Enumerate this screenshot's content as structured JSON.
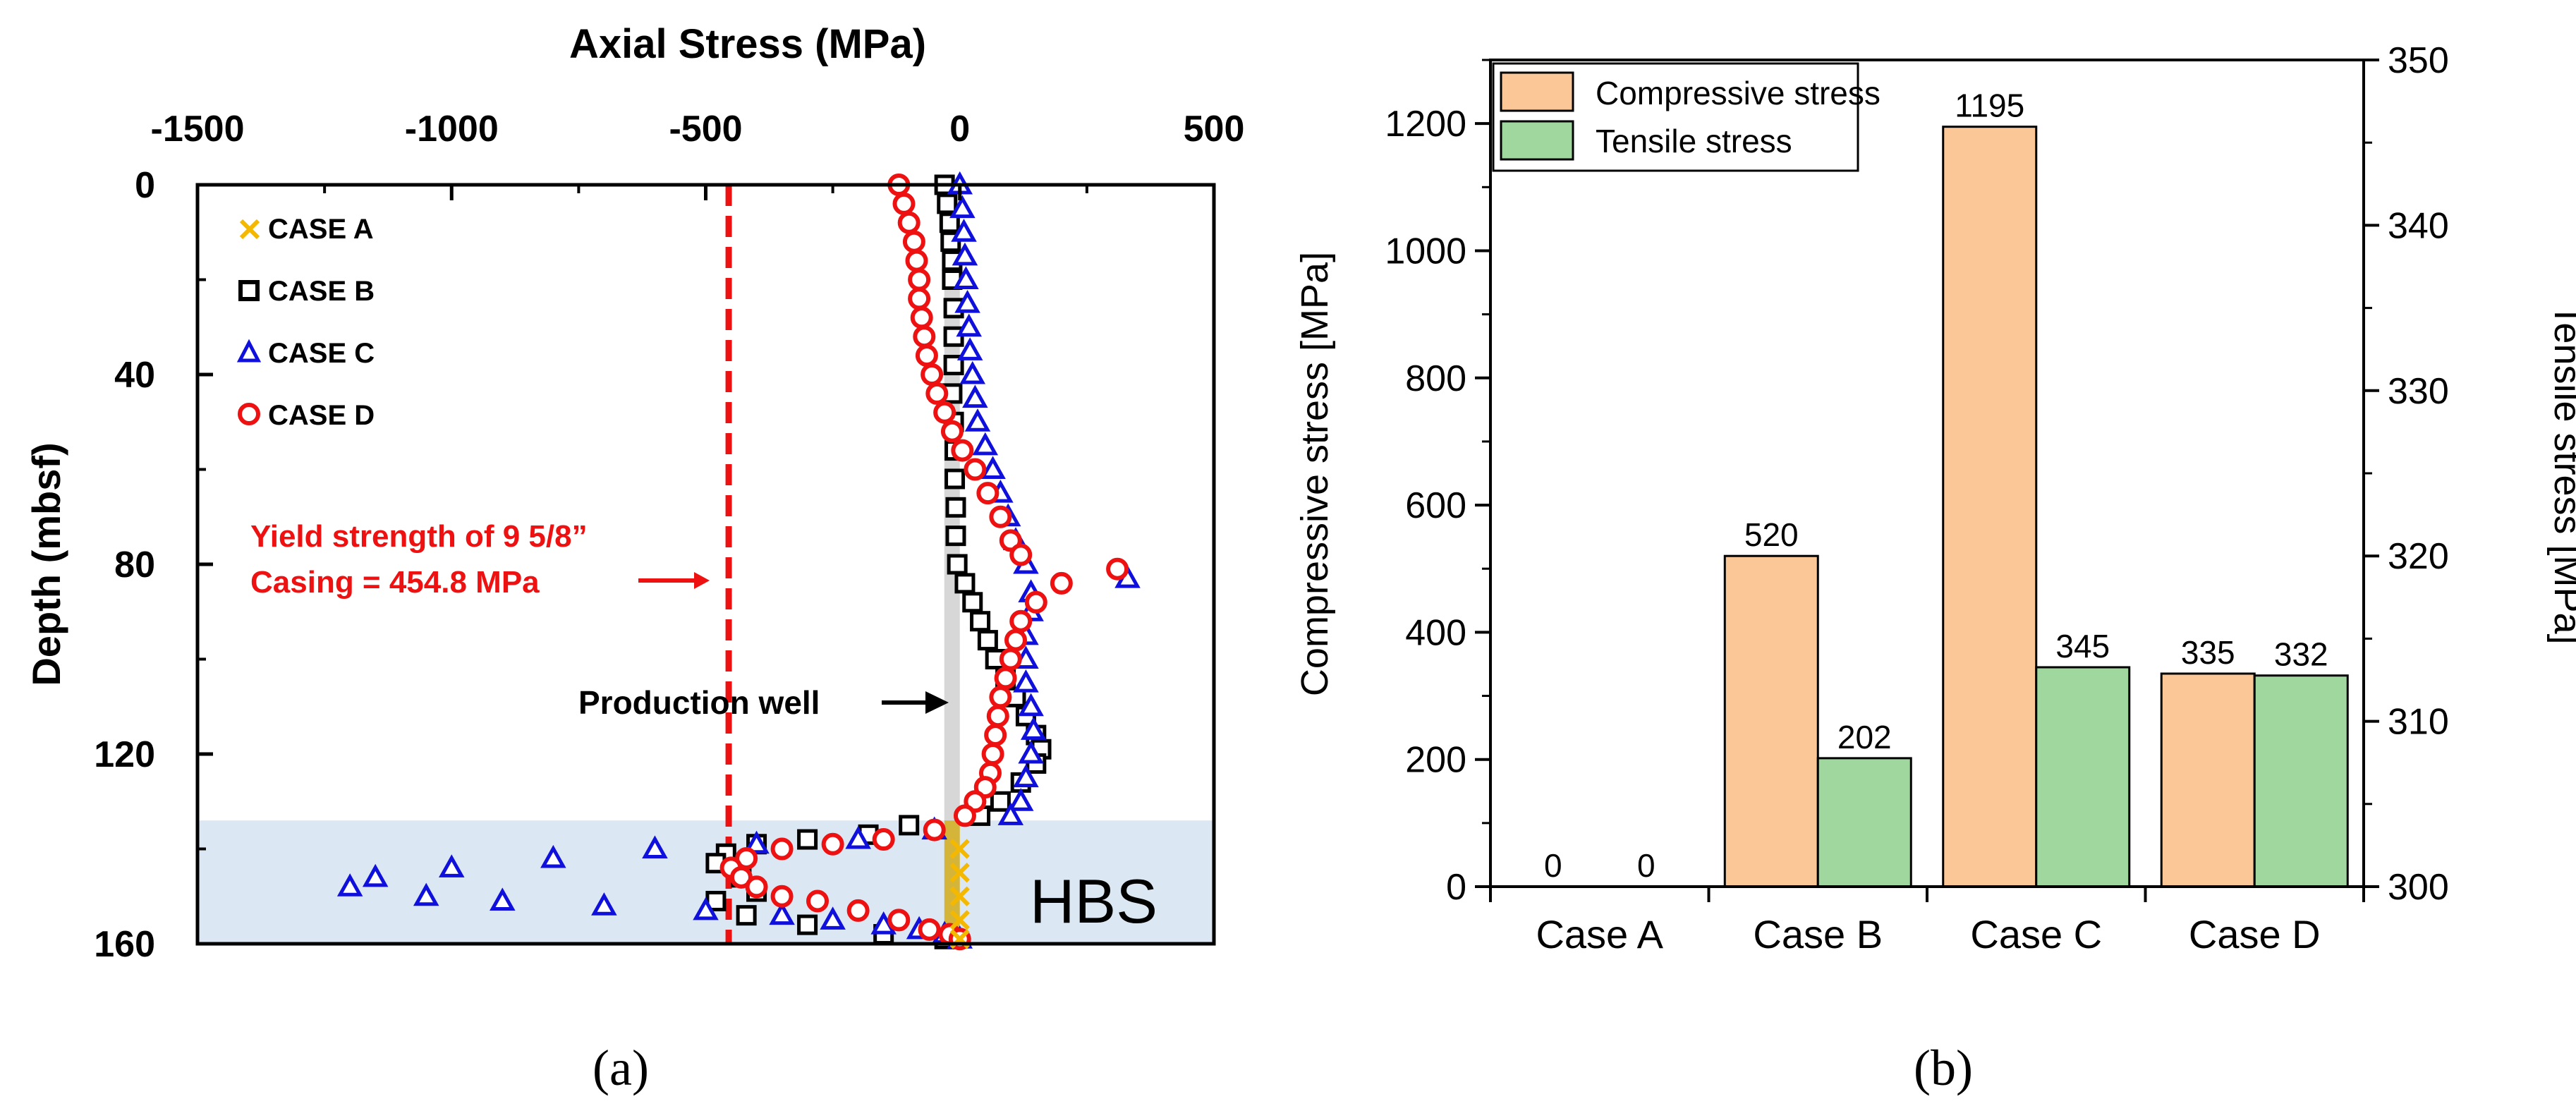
{
  "chart_data": [
    {
      "type": "scatter",
      "panel_label": "(a)",
      "xlabel": "Axial Stress (MPa)",
      "ylabel": "Depth (mbsf)",
      "xlim": [
        -1500,
        500
      ],
      "ylim": [
        160,
        0
      ],
      "x_ticks": [
        "-1500",
        "-1000",
        "-500",
        "0",
        "500"
      ],
      "y_ticks": [
        "0",
        "40",
        "80",
        "120",
        "160"
      ],
      "legend": [
        {
          "name": "CASE A",
          "marker": "x",
          "color": "#f5b800"
        },
        {
          "name": "CASE B",
          "marker": "square",
          "color": "#000000"
        },
        {
          "name": "CASE C",
          "marker": "triangle",
          "color": "#1010dd"
        },
        {
          "name": "CASE D",
          "marker": "circle",
          "color": "#ee1111"
        }
      ],
      "annotations": {
        "yield_line_value": -454.8,
        "yield_text_1": "Yield strength of 9 5/8”",
        "yield_text_2": "Casing = 454.8 MPa",
        "production_well": "Production well",
        "hbs": "HBS",
        "hbs_depth_range": [
          134,
          160
        ],
        "well_depth_range": [
          0,
          160
        ]
      },
      "series": [
        {
          "name": "CASE A",
          "points": [
            [
              0,
              140
            ],
            [
              0,
              145
            ],
            [
              0,
              150
            ],
            [
              0,
              155
            ],
            [
              0,
              159
            ]
          ]
        },
        {
          "name": "CASE B",
          "points": [
            [
              -30,
              0
            ],
            [
              -25,
              4
            ],
            [
              -20,
              8
            ],
            [
              -18,
              12
            ],
            [
              -15,
              16
            ],
            [
              -15,
              20
            ],
            [
              -12,
              26
            ],
            [
              -12,
              32
            ],
            [
              -12,
              38
            ],
            [
              -15,
              44
            ],
            [
              -12,
              50
            ],
            [
              -10,
              56
            ],
            [
              -10,
              62
            ],
            [
              -8,
              68
            ],
            [
              -8,
              74
            ],
            [
              -5,
              80
            ],
            [
              10,
              84
            ],
            [
              25,
              88
            ],
            [
              40,
              92
            ],
            [
              55,
              96
            ],
            [
              70,
              100
            ],
            [
              90,
              104
            ],
            [
              110,
              108
            ],
            [
              130,
              112
            ],
            [
              150,
              116
            ],
            [
              160,
              119
            ],
            [
              150,
              122
            ],
            [
              120,
              126
            ],
            [
              80,
              130
            ],
            [
              40,
              133
            ],
            [
              -100,
              135
            ],
            [
              -180,
              137
            ],
            [
              -300,
              138
            ],
            [
              -400,
              139
            ],
            [
              -460,
              141
            ],
            [
              -480,
              143
            ],
            [
              -430,
              146
            ],
            [
              -400,
              149
            ],
            [
              -480,
              151
            ],
            [
              -420,
              154
            ],
            [
              -300,
              156
            ],
            [
              -150,
              158
            ],
            [
              -30,
              159
            ]
          ]
        },
        {
          "name": "CASE C",
          "points": [
            [
              0,
              0
            ],
            [
              5,
              5
            ],
            [
              8,
              10
            ],
            [
              10,
              15
            ],
            [
              12,
              20
            ],
            [
              15,
              25
            ],
            [
              18,
              30
            ],
            [
              20,
              35
            ],
            [
              25,
              40
            ],
            [
              30,
              45
            ],
            [
              35,
              50
            ],
            [
              50,
              55
            ],
            [
              65,
              60
            ],
            [
              80,
              65
            ],
            [
              95,
              70
            ],
            [
              110,
              75
            ],
            [
              130,
              80
            ],
            [
              330,
              83
            ],
            [
              140,
              86
            ],
            [
              140,
              90
            ],
            [
              130,
              95
            ],
            [
              130,
              100
            ],
            [
              130,
              105
            ],
            [
              140,
              110
            ],
            [
              145,
              115
            ],
            [
              140,
              120
            ],
            [
              130,
              125
            ],
            [
              120,
              130
            ],
            [
              100,
              133
            ],
            [
              -50,
              136
            ],
            [
              -200,
              138
            ],
            [
              -400,
              139
            ],
            [
              -600,
              140
            ],
            [
              -800,
              142
            ],
            [
              -1000,
              144
            ],
            [
              -1150,
              146
            ],
            [
              -1200,
              148
            ],
            [
              -1050,
              150
            ],
            [
              -900,
              151
            ],
            [
              -700,
              152
            ],
            [
              -500,
              153
            ],
            [
              -350,
              154
            ],
            [
              -250,
              155
            ],
            [
              -150,
              156
            ],
            [
              -80,
              157
            ],
            [
              -30,
              158
            ],
            [
              0,
              159
            ]
          ]
        },
        {
          "name": "CASE D",
          "points": [
            [
              -120,
              0
            ],
            [
              -110,
              4
            ],
            [
              -100,
              8
            ],
            [
              -90,
              12
            ],
            [
              -85,
              16
            ],
            [
              -80,
              20
            ],
            [
              -80,
              24
            ],
            [
              -75,
              28
            ],
            [
              -70,
              32
            ],
            [
              -65,
              36
            ],
            [
              -55,
              40
            ],
            [
              -45,
              44
            ],
            [
              -30,
              48
            ],
            [
              -15,
              52
            ],
            [
              5,
              56
            ],
            [
              30,
              60
            ],
            [
              55,
              65
            ],
            [
              80,
              70
            ],
            [
              100,
              75
            ],
            [
              120,
              78
            ],
            [
              310,
              81
            ],
            [
              200,
              84
            ],
            [
              150,
              88
            ],
            [
              120,
              92
            ],
            [
              110,
              96
            ],
            [
              100,
              100
            ],
            [
              90,
              104
            ],
            [
              80,
              108
            ],
            [
              75,
              112
            ],
            [
              70,
              116
            ],
            [
              65,
              120
            ],
            [
              60,
              124
            ],
            [
              50,
              127
            ],
            [
              30,
              130
            ],
            [
              10,
              133
            ],
            [
              -50,
              136
            ],
            [
              -150,
              138
            ],
            [
              -250,
              139
            ],
            [
              -350,
              140
            ],
            [
              -420,
              142
            ],
            [
              -450,
              144
            ],
            [
              -430,
              146
            ],
            [
              -400,
              148
            ],
            [
              -350,
              150
            ],
            [
              -280,
              151
            ],
            [
              -200,
              153
            ],
            [
              -120,
              155
            ],
            [
              -60,
              157
            ],
            [
              -20,
              158
            ],
            [
              0,
              159
            ]
          ]
        }
      ]
    },
    {
      "type": "bar",
      "panel_label": "(b)",
      "categories": [
        "Case A",
        "Case B",
        "Case C",
        "Case D"
      ],
      "ylabel": "Compressive stress [MPa]",
      "y2label": "Tensile stress [MPa]",
      "ylim": [
        0,
        1300
      ],
      "y2lim": [
        300,
        350
      ],
      "y_ticks": [
        "0",
        "200",
        "400",
        "600",
        "800",
        "1000",
        "1200"
      ],
      "y2_ticks": [
        "300",
        "310",
        "320",
        "330",
        "340",
        "350"
      ],
      "legend_placement": "top-left",
      "series": [
        {
          "name": "Compressive stress",
          "color": "#fbc797",
          "axis": "left",
          "values": [
            0,
            520,
            1195,
            335
          ],
          "labels": [
            "0",
            "520",
            "1195",
            "335"
          ]
        },
        {
          "name": "Tensile stress",
          "color": "#9fd79f",
          "axis": "left",
          "values": [
            0,
            202,
            345,
            332
          ],
          "labels": [
            "0",
            "202",
            "345",
            "332"
          ]
        }
      ]
    }
  ]
}
